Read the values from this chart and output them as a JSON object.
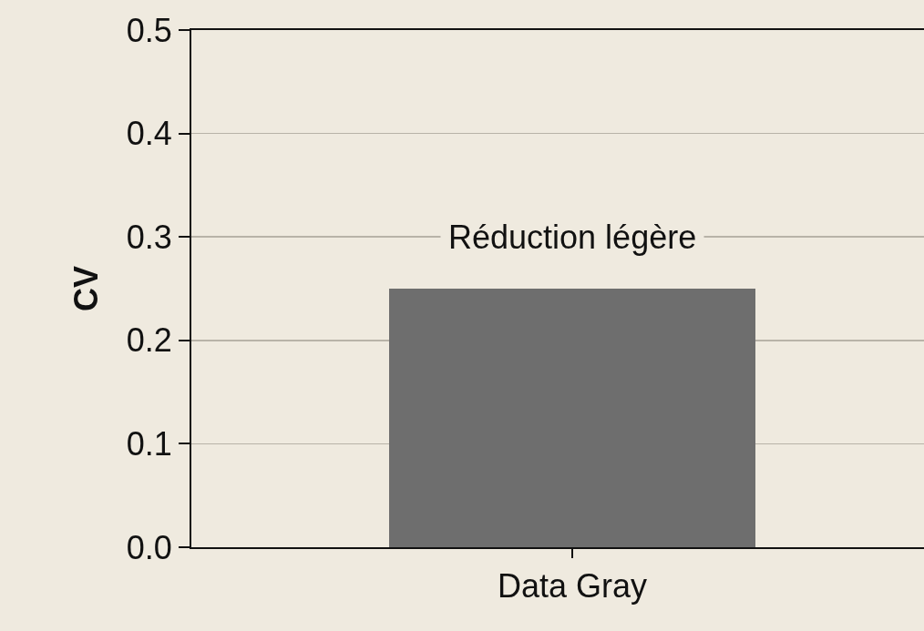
{
  "chart_data": {
    "type": "bar",
    "ylabel": "CV",
    "categories": [
      "Data Gray"
    ],
    "values": [
      0.25
    ],
    "color": "#6e6e6e",
    "ylim": [
      0,
      0.5
    ],
    "yticks": [
      {
        "value": 0,
        "label": "0.0"
      },
      0.1,
      0.2,
      0.3,
      0.4,
      0.5
    ],
    "grid": "y",
    "annotations": [
      "Réduction légère"
    ]
  }
}
